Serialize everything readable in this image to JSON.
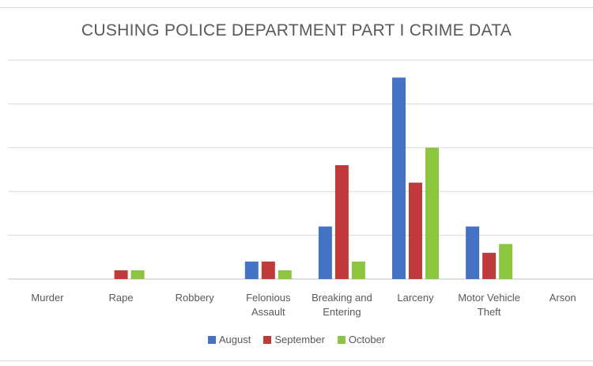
{
  "chart_data": {
    "type": "bar",
    "title": "CUSHING POLICE DEPARTMENT PART I CRIME DATA",
    "xlabel": "",
    "ylabel": "",
    "categories": [
      [
        "Murder"
      ],
      [
        "Rape"
      ],
      [
        "Robbery"
      ],
      [
        "Felonious",
        "Assault"
      ],
      [
        "Breaking and",
        "Entering"
      ],
      [
        "Larceny"
      ],
      [
        "Motor Vehicle",
        "Theft"
      ],
      [
        "Arson"
      ]
    ],
    "series": [
      {
        "name": "August",
        "color": "#4472c4",
        "values": [
          0,
          0,
          0,
          2,
          6,
          23,
          6,
          0
        ]
      },
      {
        "name": "September",
        "color": "#c0393b",
        "values": [
          0,
          1,
          0,
          2,
          13,
          11,
          3,
          0
        ]
      },
      {
        "name": "October",
        "color": "#8cc63f",
        "values": [
          0,
          1,
          0,
          1,
          2,
          15,
          4,
          0
        ]
      }
    ],
    "ylim": [
      0,
      25
    ],
    "grid": true,
    "legend_position": "bottom"
  }
}
